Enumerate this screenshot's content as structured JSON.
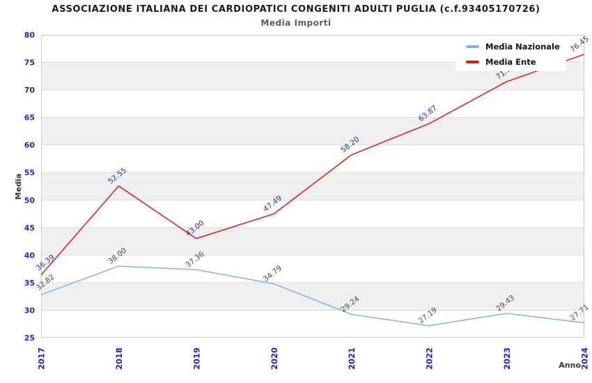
{
  "header": {
    "title": "ASSOCIAZIONE ITALIANA DEI CARDIOPATICI CONGENITI ADULTI PUGLIA (c.f.93405170726)",
    "subtitle": "Media Importi"
  },
  "legend": {
    "items": [
      {
        "label": "Media Nazionale",
        "color": "#7db4e6"
      },
      {
        "label": "Media Ente",
        "color": "#e8140e"
      }
    ]
  },
  "chart_data": {
    "type": "line",
    "x": [
      2017,
      2018,
      2019,
      2020,
      2021,
      2022,
      2023,
      2024
    ],
    "xlabel": "Anno",
    "ylabel": "Media",
    "ylim": [
      25,
      80
    ],
    "yticks": [
      25,
      30,
      35,
      40,
      45,
      50,
      55,
      60,
      65,
      70,
      75,
      80
    ],
    "grid": true,
    "legend_position": "top-right",
    "series": [
      {
        "name": "Media Nazionale",
        "color": "#7db4e6",
        "label_color": "#4b4b4b",
        "values": [
          32.82,
          38.0,
          37.36,
          34.79,
          29.24,
          27.19,
          29.43,
          27.71
        ],
        "labels": [
          "32.82",
          "38.00",
          "37.36",
          "34.79",
          "29.24",
          "27.19",
          "29.43",
          "27.71"
        ]
      },
      {
        "name": "Media Ente",
        "color": "#e8140e",
        "label_color": "#30309a",
        "values": [
          36.39,
          52.55,
          43.0,
          47.49,
          58.2,
          63.87,
          71.5,
          76.45
        ],
        "labels": [
          "36.39",
          "52.55",
          "43.00",
          "47.49",
          "58.20",
          "63.87",
          "71.50",
          "76.45"
        ]
      }
    ],
    "plot_style": {
      "band_colors": [
        "#ffffff",
        "#f0f0f0"
      ],
      "grid_color": "#d9d9d9",
      "border_color": "#c9c9c9",
      "tick_label_color": "#2222cc",
      "axis_title_color": "#333333"
    }
  }
}
